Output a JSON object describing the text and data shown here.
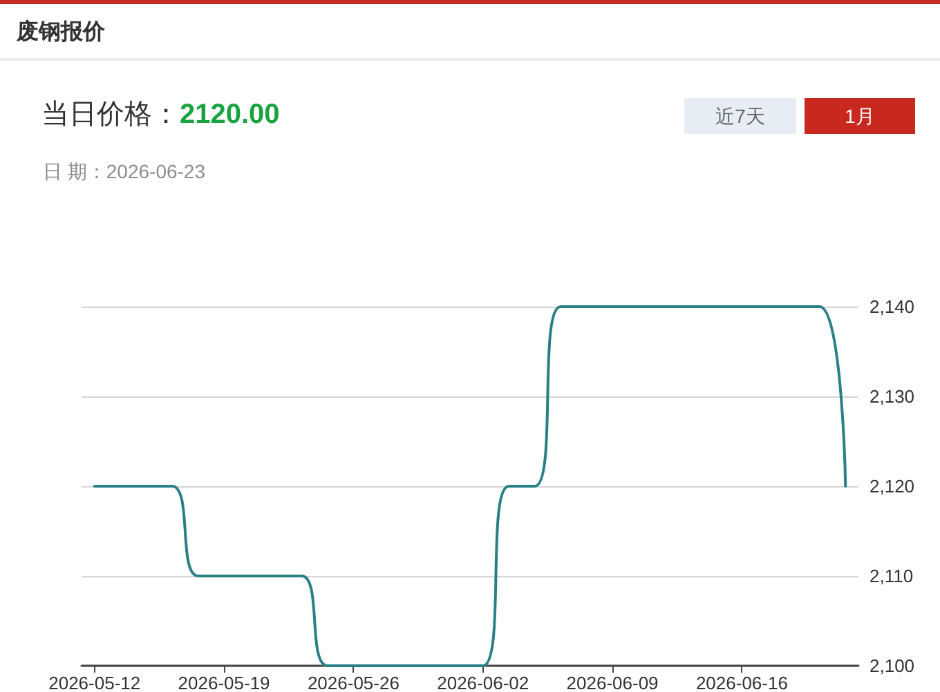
{
  "chart_data": {
    "type": "line",
    "title": "废钢报价",
    "annotations": [
      "当日价格：",
      "2120.00",
      "日 期：2026-06-23",
      "近7天",
      "1月"
    ],
    "categories": [
      "2026-05-12",
      null,
      null,
      null,
      null,
      "2026-05-19",
      null,
      null,
      null,
      null,
      "2026-05-26",
      null,
      null,
      null,
      null,
      "2026-06-02",
      null,
      null,
      null,
      null,
      "2026-06-09",
      null,
      null,
      null,
      null,
      "2026-06-16",
      null,
      null,
      null,
      null
    ],
    "series": [
      {
        "color": "#2a7f87",
        "values": [
          2120,
          2120,
          2120,
          2120,
          2110,
          2110,
          2110,
          2110,
          2110,
          2100,
          2100,
          2100,
          2100,
          2100,
          2100,
          2100,
          2120,
          2120,
          2140,
          2140,
          2140,
          2140,
          2140,
          2140,
          2140,
          2140,
          2140,
          2140,
          2140,
          2120
        ]
      }
    ],
    "ylim": [
      2100,
      2140
    ],
    "yticks": [
      {
        "value": 2100,
        "label": "2,100"
      },
      {
        "value": 2110,
        "label": "2,110"
      },
      {
        "value": 2120,
        "label": "2,120"
      },
      {
        "value": 2130,
        "label": "2,130"
      },
      {
        "value": 2140,
        "label": "2,140"
      }
    ],
    "grid": "y",
    "marker": "none",
    "line_style": "solid"
  }
}
